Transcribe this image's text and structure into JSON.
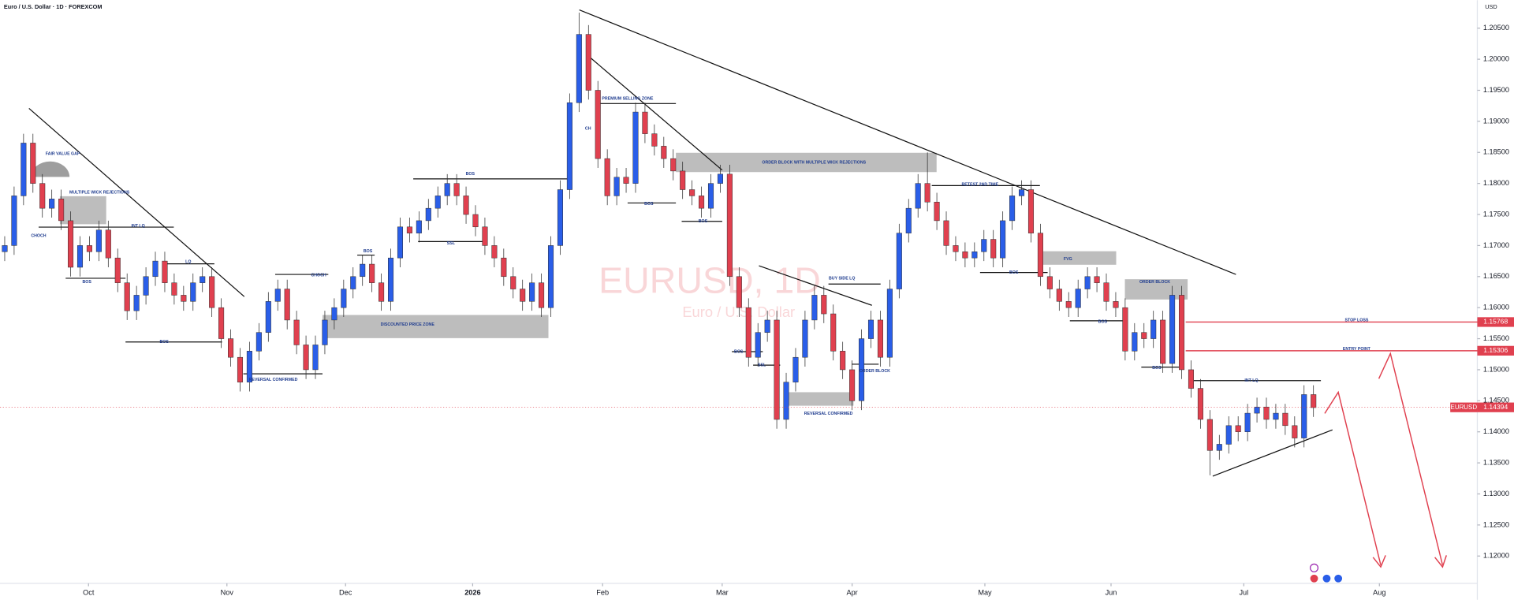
{
  "header": {
    "symbol": "Euro / U.S. Dollar · 1D · FOREXCOM",
    "currency": "USD"
  },
  "watermark": {
    "title": "EURUSD, 1D",
    "subtitle": "Euro / U.S. Dollar"
  },
  "chart_data": {
    "type": "candlestick",
    "open": [
      1.169,
      1.17,
      1.178,
      1.1865,
      1.18,
      1.176,
      1.1775,
      1.174,
      1.1665,
      1.17,
      1.169,
      1.1725,
      1.168,
      1.164,
      1.1595,
      1.162,
      1.165,
      1.1675,
      1.164,
      1.162,
      1.161,
      1.164,
      1.165,
      1.16,
      1.155,
      1.152,
      1.148,
      1.153,
      1.156,
      1.161,
      1.163,
      1.158,
      1.154,
      1.15,
      1.154,
      1.158,
      1.16,
      1.163,
      1.165,
      1.167,
      1.164,
      1.161,
      1.168,
      1.173,
      1.172,
      1.174,
      1.176,
      1.178,
      1.18,
      1.178,
      1.175,
      1.173,
      1.17,
      1.168,
      1.165,
      1.163,
      1.161,
      1.164,
      1.16,
      1.17,
      1.179,
      1.193,
      1.204,
      1.195,
      1.184,
      1.178,
      1.181,
      1.18,
      1.1915,
      1.188,
      1.186,
      1.184,
      1.182,
      1.179,
      1.178,
      1.176,
      1.18,
      1.1815,
      1.165,
      1.16,
      1.152,
      1.156,
      1.158,
      1.142,
      1.148,
      1.152,
      1.158,
      1.162,
      1.159,
      1.153,
      1.15,
      1.145,
      1.155,
      1.158,
      1.152,
      1.163,
      1.172,
      1.176,
      1.18,
      1.177,
      1.174,
      1.17,
      1.169,
      1.168,
      1.169,
      1.171,
      1.168,
      1.174,
      1.178,
      1.179,
      1.172,
      1.165,
      1.163,
      1.161,
      1.16,
      1.163,
      1.165,
      1.164,
      1.161,
      1.16,
      1.153,
      1.156,
      1.155,
      1.158,
      1.151,
      1.162,
      1.15,
      1.147,
      1.142,
      1.137,
      1.138,
      1.141,
      1.14,
      1.143,
      1.144,
      1.142,
      1.143,
      1.141,
      1.139,
      1.146
    ],
    "high": [
      1.1715,
      1.1795,
      1.188,
      1.188,
      1.1815,
      1.179,
      1.179,
      1.1755,
      1.1715,
      1.1715,
      1.174,
      1.174,
      1.1695,
      1.1655,
      1.1635,
      1.1665,
      1.169,
      1.169,
      1.1655,
      1.1635,
      1.1655,
      1.1665,
      1.1665,
      1.1615,
      1.1565,
      1.1535,
      1.1545,
      1.1575,
      1.1625,
      1.1645,
      1.1645,
      1.1595,
      1.1555,
      1.1555,
      1.1595,
      1.1615,
      1.1645,
      1.1665,
      1.1685,
      1.1685,
      1.1655,
      1.1695,
      1.1745,
      1.1745,
      1.1755,
      1.1775,
      1.1795,
      1.1815,
      1.1815,
      1.1795,
      1.1765,
      1.1745,
      1.1715,
      1.1695,
      1.1665,
      1.1645,
      1.1655,
      1.1655,
      1.1715,
      1.1805,
      1.1945,
      1.2075,
      1.2055,
      1.1965,
      1.1855,
      1.1825,
      1.1825,
      1.193,
      1.193,
      1.1895,
      1.1875,
      1.1855,
      1.1835,
      1.1805,
      1.1795,
      1.1815,
      1.183,
      1.183,
      1.1665,
      1.1615,
      1.1575,
      1.1595,
      1.1595,
      1.1495,
      1.1535,
      1.1595,
      1.1635,
      1.1635,
      1.1605,
      1.1545,
      1.1515,
      1.1565,
      1.1595,
      1.1595,
      1.1645,
      1.1735,
      1.1775,
      1.1815,
      1.185,
      1.1785,
      1.1755,
      1.1715,
      1.1705,
      1.1705,
      1.1725,
      1.1725,
      1.1755,
      1.1795,
      1.1805,
      1.1805,
      1.1735,
      1.1665,
      1.1645,
      1.1625,
      1.1645,
      1.1665,
      1.1665,
      1.1655,
      1.1625,
      1.1615,
      1.1575,
      1.1575,
      1.1595,
      1.1595,
      1.1635,
      1.1635,
      1.1515,
      1.1485,
      1.1435,
      1.1395,
      1.1425,
      1.1425,
      1.1445,
      1.1455,
      1.1455,
      1.1445,
      1.1445,
      1.1425,
      1.1475,
      1.1475
    ],
    "low": [
      1.1675,
      1.1685,
      1.1765,
      1.1785,
      1.1745,
      1.1745,
      1.1725,
      1.165,
      1.165,
      1.1675,
      1.1675,
      1.1665,
      1.1625,
      1.158,
      1.158,
      1.1605,
      1.1635,
      1.1625,
      1.1605,
      1.1595,
      1.1595,
      1.1625,
      1.1585,
      1.1535,
      1.1505,
      1.1465,
      1.1465,
      1.1515,
      1.1545,
      1.1595,
      1.1565,
      1.1525,
      1.1485,
      1.1485,
      1.1525,
      1.1565,
      1.1585,
      1.1615,
      1.1635,
      1.1625,
      1.1595,
      1.1595,
      1.1665,
      1.1705,
      1.1705,
      1.1725,
      1.1745,
      1.1765,
      1.1765,
      1.1735,
      1.1715,
      1.1685,
      1.1665,
      1.1635,
      1.1615,
      1.1595,
      1.1595,
      1.1585,
      1.1585,
      1.1685,
      1.1775,
      1.1915,
      1.1935,
      1.1825,
      1.1765,
      1.1765,
      1.1785,
      1.1785,
      1.1865,
      1.1845,
      1.1825,
      1.1805,
      1.1775,
      1.1765,
      1.1745,
      1.1745,
      1.1785,
      1.1635,
      1.1585,
      1.1505,
      1.1505,
      1.1545,
      1.1405,
      1.1405,
      1.1465,
      1.1505,
      1.1565,
      1.1575,
      1.1515,
      1.1485,
      1.1435,
      1.1435,
      1.1535,
      1.1505,
      1.1505,
      1.1615,
      1.1705,
      1.1745,
      1.1755,
      1.1725,
      1.1685,
      1.1675,
      1.1665,
      1.1665,
      1.1675,
      1.1665,
      1.1665,
      1.1725,
      1.1765,
      1.1705,
      1.1635,
      1.1615,
      1.1595,
      1.1585,
      1.1585,
      1.1615,
      1.1625,
      1.1595,
      1.1585,
      1.1515,
      1.1515,
      1.1535,
      1.1535,
      1.1495,
      1.1495,
      1.1485,
      1.1455,
      1.1405,
      1.133,
      1.1355,
      1.1365,
      1.1385,
      1.1385,
      1.1415,
      1.1405,
      1.1405,
      1.1395,
      1.1375,
      1.1375,
      1.1424
    ],
    "close": [
      1.17,
      1.178,
      1.1865,
      1.18,
      1.176,
      1.1775,
      1.174,
      1.1665,
      1.17,
      1.169,
      1.1725,
      1.168,
      1.164,
      1.1595,
      1.162,
      1.165,
      1.1675,
      1.164,
      1.162,
      1.161,
      1.164,
      1.165,
      1.16,
      1.155,
      1.152,
      1.148,
      1.153,
      1.156,
      1.161,
      1.163,
      1.158,
      1.154,
      1.15,
      1.154,
      1.158,
      1.16,
      1.163,
      1.165,
      1.167,
      1.164,
      1.161,
      1.168,
      1.173,
      1.172,
      1.174,
      1.176,
      1.178,
      1.18,
      1.178,
      1.175,
      1.173,
      1.17,
      1.168,
      1.165,
      1.163,
      1.161,
      1.164,
      1.16,
      1.17,
      1.179,
      1.193,
      1.204,
      1.195,
      1.184,
      1.178,
      1.181,
      1.18,
      1.1915,
      1.188,
      1.186,
      1.184,
      1.182,
      1.179,
      1.178,
      1.176,
      1.18,
      1.1815,
      1.165,
      1.16,
      1.152,
      1.156,
      1.158,
      1.142,
      1.148,
      1.152,
      1.158,
      1.162,
      1.159,
      1.153,
      1.15,
      1.145,
      1.155,
      1.158,
      1.152,
      1.163,
      1.172,
      1.176,
      1.18,
      1.177,
      1.174,
      1.17,
      1.169,
      1.168,
      1.169,
      1.171,
      1.168,
      1.174,
      1.178,
      1.179,
      1.172,
      1.165,
      1.163,
      1.161,
      1.16,
      1.163,
      1.165,
      1.164,
      1.161,
      1.16,
      1.153,
      1.156,
      1.155,
      1.158,
      1.151,
      1.162,
      1.15,
      1.147,
      1.142,
      1.137,
      1.138,
      1.141,
      1.14,
      1.143,
      1.144,
      1.142,
      1.143,
      1.141,
      1.139,
      1.146,
      1.1439
    ],
    "up_color": "#2a5ee8",
    "down_color": "#e0404f",
    "xlim": [
      -0.5,
      156.4
    ],
    "xticks": [
      {
        "value": 8.9,
        "label": "Oct"
      },
      {
        "value": 23.6,
        "label": "Nov"
      },
      {
        "value": 36.2,
        "label": "Dec"
      },
      {
        "value": 49.7,
        "label": "2026"
      },
      {
        "value": 63.5,
        "label": "Feb"
      },
      {
        "value": 76.2,
        "label": "Mar"
      },
      {
        "value": 90,
        "label": "Apr"
      },
      {
        "value": 104.1,
        "label": "May"
      },
      {
        "value": 117.5,
        "label": "Jun"
      },
      {
        "value": 131.6,
        "label": "Jul"
      },
      {
        "value": 146,
        "label": "Aug"
      }
    ],
    "ylim": [
      1.1156,
      1.2095
    ],
    "yticks": [
      {
        "value": 1.12,
        "label": "1.12000"
      },
      {
        "value": 1.125,
        "label": "1.12500"
      },
      {
        "value": 1.13,
        "label": "1.13000"
      },
      {
        "value": 1.135,
        "label": "1.13500"
      },
      {
        "value": 1.14,
        "label": "1.14000"
      },
      {
        "value": 1.145,
        "label": "1.14500"
      },
      {
        "value": 1.15,
        "label": "1.15000"
      },
      {
        "value": 1.155,
        "label": "1.15500"
      },
      {
        "value": 1.16,
        "label": "1.16000"
      },
      {
        "value": 1.165,
        "label": "1.16500"
      },
      {
        "value": 1.17,
        "label": "1.17000"
      },
      {
        "value": 1.175,
        "label": "1.17500"
      },
      {
        "value": 1.18,
        "label": "1.18000"
      },
      {
        "value": 1.185,
        "label": "1.18500"
      },
      {
        "value": 1.19,
        "label": "1.19000"
      },
      {
        "value": 1.195,
        "label": "1.19500"
      },
      {
        "value": 1.2,
        "label": "1.20000"
      },
      {
        "value": 1.205,
        "label": "1.20500"
      }
    ],
    "last_price": {
      "name": "EURUSD",
      "value": 1.14394
    },
    "stop_loss": {
      "label": "STOP LOSS",
      "value": 1.15768
    },
    "entry": {
      "label": "ENTRY POINT",
      "value": 1.15306
    },
    "annotations": [
      "FAIR VALUE GAP",
      "MULTIPLE WICK REJECTIONS",
      "CHOCH",
      "INT LQ",
      "BOS",
      "LQ",
      "BOS",
      "CHOCH",
      "BOS",
      "DISCOUNTED PRICE ZONE",
      "REVERSAL CONFIRMED",
      "SSL",
      "BOS",
      "PREMIUM SELLING ZONE",
      "CH",
      "BOS",
      "BOS",
      "ORDER BLOCK WITH MULTIPLE WICK REJECTIONS",
      "BUY SIDE LQ",
      "BOS",
      "SSL",
      "ORDER BLOCK",
      "REVERSAL CONFIRMED",
      "RETEST 2ND TIME",
      "BOS",
      "FVG",
      "ORDER BLOCK",
      "BOS",
      "BOS",
      "INT LQ"
    ]
  }
}
